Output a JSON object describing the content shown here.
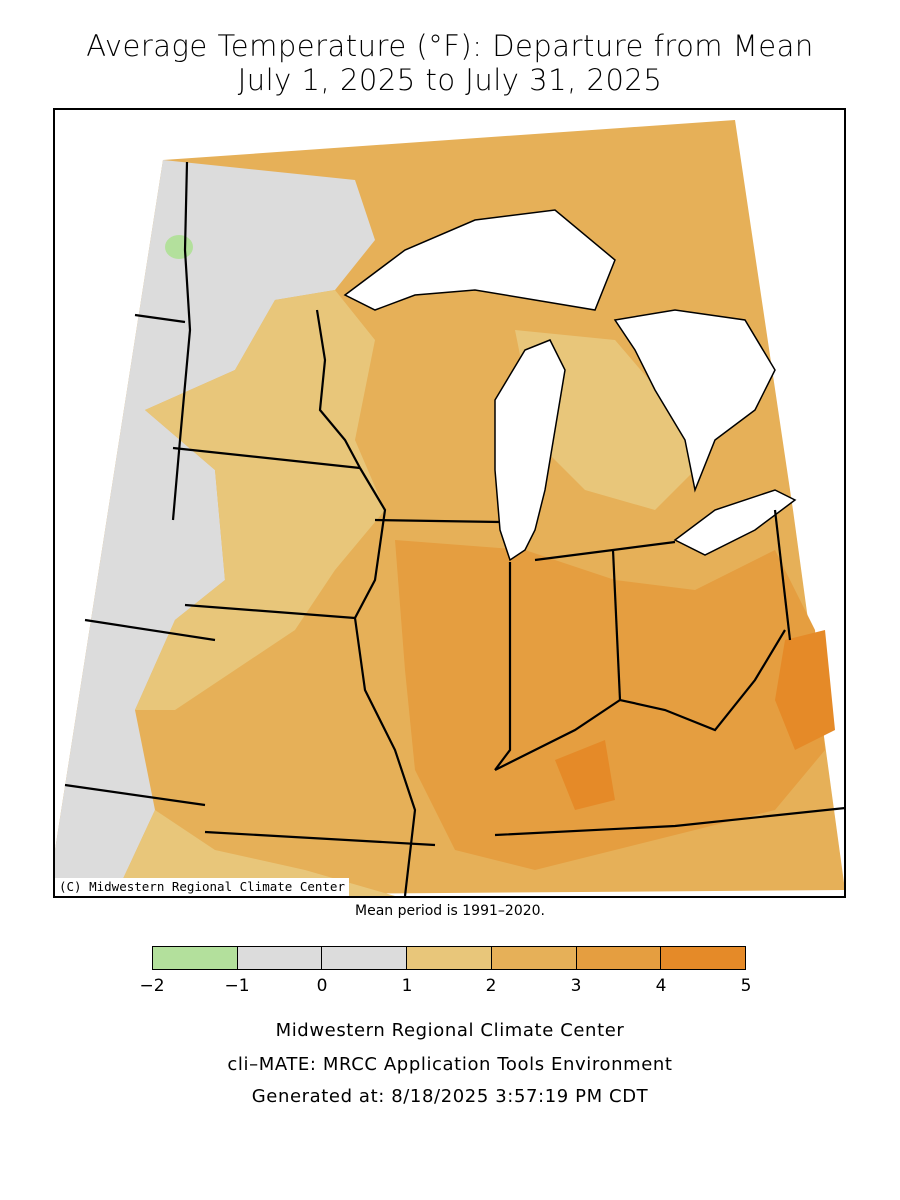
{
  "title": {
    "line1": "Average Temperature (°F): Departure from Mean",
    "line2": "July 1, 2025 to July 31, 2025"
  },
  "copyright": "(C) Midwestern Regional Climate Center",
  "mean_note": "Mean period is 1991–2020.",
  "legend": {
    "ticks": [
      "−2",
      "−1",
      "0",
      "1",
      "2",
      "3",
      "4",
      "5"
    ],
    "colors": [
      "#b3e09c",
      "#dcdcdc",
      "#dcdcdc",
      "#e8c67a",
      "#e6b058",
      "#e59e40",
      "#e58a28"
    ]
  },
  "map_colors": {
    "land_base": "#e6b058",
    "below_normal": "#dcdcdc",
    "cool_spot": "#b3e09c",
    "slightly_warm": "#e8c67a",
    "warm": "#e59e40",
    "warmest": "#e58a28",
    "water": "#ffffff",
    "border": "#000000"
  },
  "footer": {
    "line1": "Midwestern Regional Climate Center",
    "line2": "cli–MATE: MRCC Application Tools Environment",
    "line3": "Generated at: 8/18/2025 3:57:19 PM CDT"
  }
}
